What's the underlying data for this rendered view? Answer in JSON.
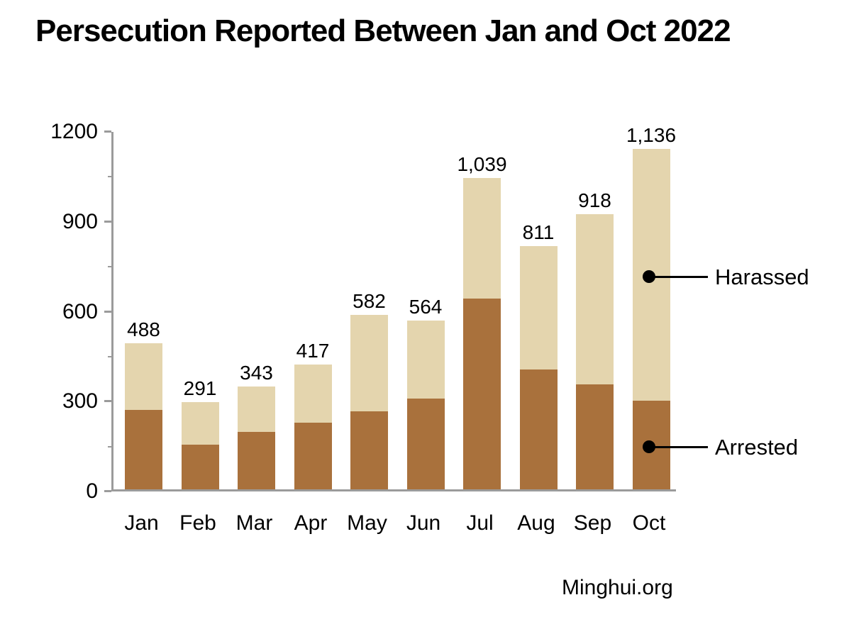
{
  "chart": {
    "title": "Persecution Reported Between Jan and Oct 2022",
    "source": "Minghui.org"
  },
  "chart_data": {
    "type": "bar",
    "stacked": true,
    "title": "Persecution Reported Between Jan and Oct 2022",
    "xlabel": "",
    "ylabel": "",
    "categories": [
      "Jan",
      "Feb",
      "Mar",
      "Apr",
      "May",
      "Jun",
      "Jul",
      "Aug",
      "Sep",
      "Oct"
    ],
    "series": [
      {
        "name": "Arrested",
        "color": "#A9713C",
        "values": [
          265,
          148,
          192,
          223,
          260,
          303,
          636,
          400,
          351,
          296
        ]
      },
      {
        "name": "Harassed",
        "color": "#E4D5AE",
        "values": [
          223,
          143,
          151,
          194,
          322,
          261,
          403,
          411,
          567,
          840
        ]
      }
    ],
    "totals": [
      488,
      291,
      343,
      417,
      582,
      564,
      1039,
      811,
      918,
      1136
    ],
    "total_labels": [
      "488",
      "291",
      "343",
      "417",
      "582",
      "564",
      "1,039",
      "811",
      "918",
      "1,136"
    ],
    "ylim": [
      0,
      1200
    ],
    "yticks": [
      0,
      300,
      600,
      900,
      1200
    ],
    "ytick_labels": [
      "0",
      "300",
      "600",
      "900",
      "1200"
    ],
    "minor_yticks": [
      150,
      450,
      750,
      1050
    ],
    "grid": false,
    "legend_position": "callout-right",
    "annotations": [
      {
        "text": "Harassed",
        "month": "Oct",
        "series": "Harassed"
      },
      {
        "text": "Arrested",
        "month": "Oct",
        "series": "Arrested"
      }
    ],
    "axis_color": "#9B9B9B",
    "text_color": "#000000",
    "background_color": "#FFFFFF"
  }
}
